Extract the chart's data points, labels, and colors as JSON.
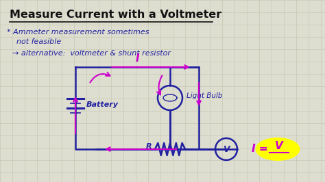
{
  "title": "Measure Current with a Voltmeter",
  "bg_color": "#deded0",
  "grid_color": "#c8c8b4",
  "bullet1_star": "* Ammeter measurement sometimes",
  "bullet1_cont": "    not feasible",
  "bullet2": "→ alternative:  voltmeter & shunt resistor",
  "text_color_dark": "#2020a0",
  "title_color": "#111111",
  "circuit_color": "#2020a0",
  "arrow_color": "#cc00cc",
  "label_I": "I",
  "label_Battery": "Battery",
  "label_LightBulb": "Light Bulb",
  "label_R": "R",
  "label_V_circ": "V",
  "label_formula_I": "I =",
  "label_formula_V": "V",
  "highlight_color": "#ffff00",
  "formula_color": "#cc00cc",
  "fig_w": 4.74,
  "fig_h": 2.66,
  "dpi": 100
}
